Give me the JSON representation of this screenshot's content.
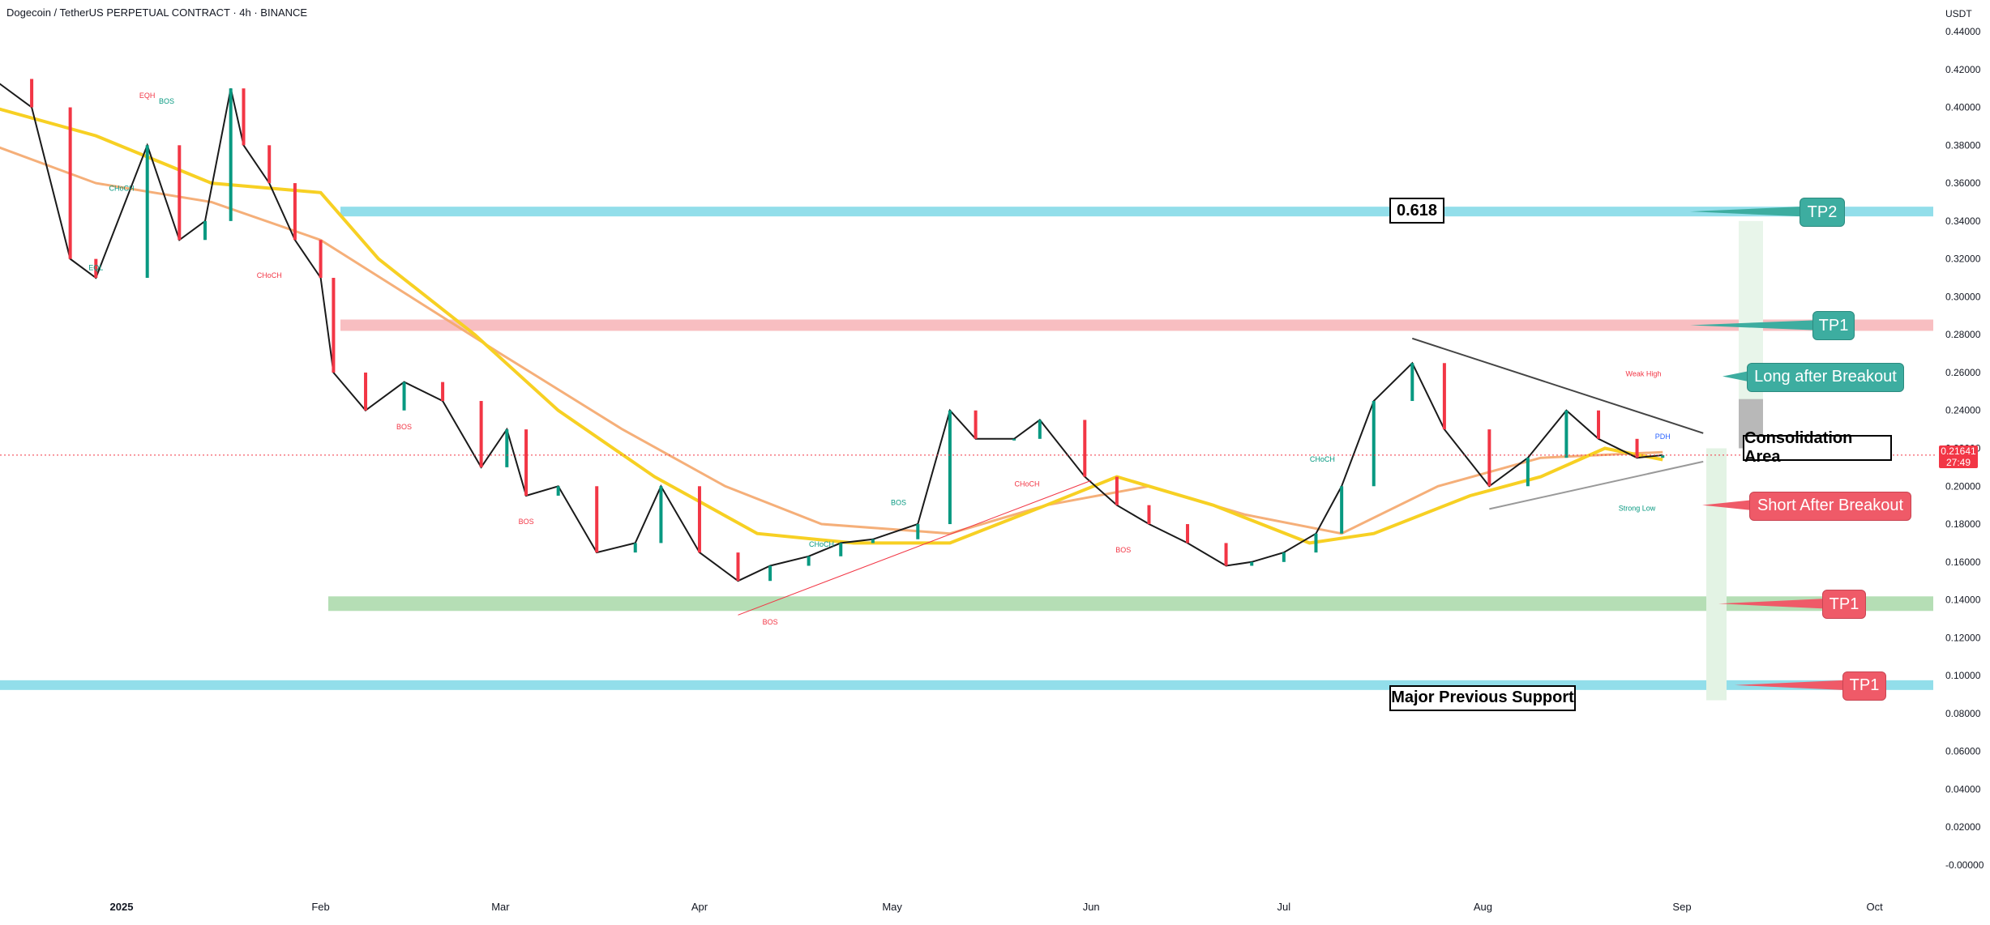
{
  "header": {
    "title": "Dogecoin / TetherUS PERPETUAL CONTRACT · 4h · BINANCE",
    "currency": "USDT"
  },
  "colors": {
    "cyan_zone": "#7fd8e6",
    "red_zone": "#f7b3b6",
    "green_zone": "#a8d8a8",
    "teal_callout": "#3dada0",
    "red_callout": "#ef5a68",
    "yellow_ma": "#f7d023",
    "orange_ma": "#f4a66a",
    "price_up": "#089981",
    "price_down": "#f23645"
  },
  "chart_data": {
    "type": "line",
    "title": "",
    "xlabel": "",
    "ylabel": "",
    "ylim": [
      -0.01,
      0.445
    ],
    "yticks": [
      "0.44000",
      "0.42000",
      "0.40000",
      "0.38000",
      "0.36000",
      "0.34000",
      "0.32000",
      "0.30000",
      "0.28000",
      "0.26000",
      "0.24000",
      "0.22000",
      "0.20000",
      "0.18000",
      "0.16000",
      "0.14000",
      "0.12000",
      "0.10000",
      "0.08000",
      "0.06000",
      "0.04000",
      "0.02000",
      "-0.00000"
    ],
    "xticks": [
      "2025",
      "Feb",
      "Mar",
      "Apr",
      "May",
      "Jun",
      "Jul",
      "Aug",
      "Sep",
      "Oct"
    ],
    "last_price": "0.21641",
    "countdown": "27:49",
    "series": [
      {
        "x": [
          "2024-12-12",
          "2024-12-18",
          "2024-12-24",
          "2024-12-28",
          "2025-01-05",
          "2025-01-10",
          "2025-01-14",
          "2025-01-18",
          "2025-01-20",
          "2025-01-24",
          "2025-01-28",
          "2025-02-01",
          "2025-02-03",
          "2025-02-08",
          "2025-02-14",
          "2025-02-20",
          "2025-02-26",
          "2025-03-02",
          "2025-03-05",
          "2025-03-10",
          "2025-03-16",
          "2025-03-22",
          "2025-03-26",
          "2025-04-01",
          "2025-04-07",
          "2025-04-12",
          "2025-04-18",
          "2025-04-23",
          "2025-04-28",
          "2025-05-05",
          "2025-05-10",
          "2025-05-14",
          "2025-05-20",
          "2025-05-24",
          "2025-05-31",
          "2025-06-05",
          "2025-06-10",
          "2025-06-16",
          "2025-06-22",
          "2025-06-26",
          "2025-07-01",
          "2025-07-06",
          "2025-07-10",
          "2025-07-15",
          "2025-07-21",
          "2025-07-26",
          "2025-08-02",
          "2025-08-08",
          "2025-08-14",
          "2025-08-19",
          "2025-08-25",
          "2025-08-29"
        ],
        "values": [
          0.415,
          0.4,
          0.32,
          0.31,
          0.38,
          0.33,
          0.34,
          0.41,
          0.38,
          0.36,
          0.33,
          0.31,
          0.26,
          0.24,
          0.255,
          0.245,
          0.21,
          0.23,
          0.195,
          0.2,
          0.165,
          0.17,
          0.2,
          0.165,
          0.15,
          0.158,
          0.163,
          0.17,
          0.172,
          0.18,
          0.24,
          0.225,
          0.225,
          0.235,
          0.205,
          0.19,
          0.18,
          0.17,
          0.158,
          0.16,
          0.165,
          0.175,
          0.2,
          0.245,
          0.265,
          0.23,
          0.2,
          0.215,
          0.24,
          0.225,
          0.215,
          0.21641
        ]
      }
    ],
    "annotations": [
      {
        "label": "0.618",
        "price": 0.345
      },
      {
        "label": "Major Previous Support",
        "price": 0.095
      },
      {
        "label": "Consolidation Area",
        "price": 0.221
      }
    ],
    "zones": [
      {
        "color": "cyan",
        "price": 0.345
      },
      {
        "color": "red",
        "price": 0.285
      },
      {
        "color": "green",
        "price": 0.138
      },
      {
        "color": "cyan",
        "price": 0.095
      }
    ],
    "targets": [
      {
        "label": "TP2",
        "price": 0.345
      },
      {
        "label": "TP1",
        "price": 0.285
      },
      {
        "label": "Long after Breakout",
        "price": 0.258
      },
      {
        "label": "Short After Breakout",
        "price": 0.19
      },
      {
        "label": "TP1",
        "price": 0.138
      },
      {
        "label": "TP1",
        "price": 0.095
      }
    ],
    "structure_labels": [
      "BOS",
      "CHoCH",
      "EQH",
      "EQL",
      "PDH",
      "Weak High",
      "Strong Low"
    ]
  }
}
